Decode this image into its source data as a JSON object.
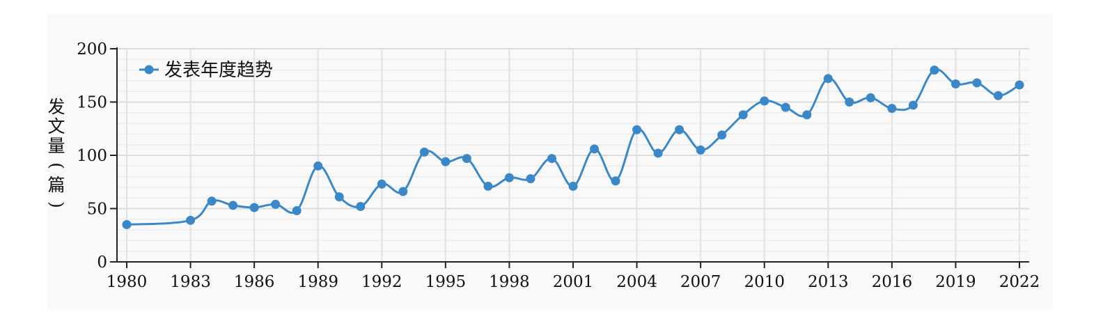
{
  "chart_data": {
    "type": "line",
    "title": "",
    "xlabel": "",
    "ylabel": "发文量(篇)",
    "ylim": [
      0,
      200
    ],
    "xlim": [
      1980,
      2022
    ],
    "y_ticks": [
      0,
      50,
      100,
      150,
      200
    ],
    "x_ticks": [
      1980,
      1983,
      1986,
      1989,
      1992,
      1995,
      1998,
      2001,
      2004,
      2007,
      2010,
      2013,
      2016,
      2019,
      2022
    ],
    "grid": true,
    "legend_position": "top-left",
    "series": [
      {
        "name": "发表年度趋势",
        "color": "#3a88c8",
        "x": [
          1980,
          1983,
          1984,
          1985,
          1986,
          1987,
          1988,
          1989,
          1990,
          1991,
          1992,
          1993,
          1994,
          1995,
          1996,
          1997,
          1998,
          1999,
          2000,
          2001,
          2002,
          2003,
          2004,
          2005,
          2006,
          2007,
          2008,
          2009,
          2010,
          2011,
          2012,
          2013,
          2014,
          2015,
          2016,
          2017,
          2018,
          2019,
          2020,
          2021,
          2022
        ],
        "y": [
          35,
          39,
          57,
          53,
          51,
          54,
          48,
          90,
          61,
          52,
          73,
          66,
          103,
          94,
          97,
          71,
          79,
          78,
          97,
          71,
          106,
          76,
          124,
          102,
          124,
          105,
          119,
          138,
          151,
          145,
          138,
          172,
          150,
          154,
          144,
          147,
          180,
          167,
          168,
          156,
          166
        ]
      }
    ]
  }
}
